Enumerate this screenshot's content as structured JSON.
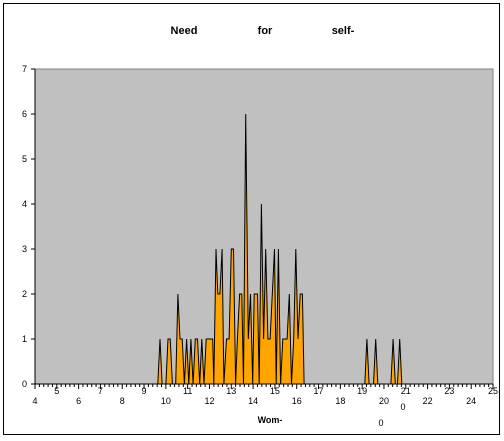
{
  "chart_data": {
    "type": "area",
    "title_words": [
      "Need",
      "for",
      "self-"
    ],
    "xlabel": "Wom-",
    "extra_labels": [
      "0",
      "0"
    ],
    "xlim": [
      4,
      25
    ],
    "ylim": [
      0,
      7
    ],
    "x_major_ticks": [
      4,
      5,
      6,
      7,
      8,
      9,
      10,
      11,
      12,
      13,
      14,
      15,
      16,
      17,
      18,
      19,
      20,
      21,
      22,
      23,
      24,
      25
    ],
    "y_ticks": [
      0,
      1,
      2,
      3,
      4,
      5,
      6,
      7
    ],
    "grid": false,
    "plot_background": "#c0c0c0",
    "fill_color": "#ffa500",
    "line_color": "#000000",
    "series": [
      {
        "points": [
          [
            9.63,
            0
          ],
          [
            9.73,
            1
          ],
          [
            9.83,
            0
          ],
          [
            10.0,
            0
          ],
          [
            10.1,
            1
          ],
          [
            10.2,
            1
          ],
          [
            10.3,
            0
          ],
          [
            10.45,
            0
          ],
          [
            10.55,
            2
          ],
          [
            10.65,
            1
          ],
          [
            10.75,
            1
          ],
          [
            10.85,
            0
          ],
          [
            10.95,
            1
          ],
          [
            11.05,
            0
          ],
          [
            11.15,
            1
          ],
          [
            11.25,
            0
          ],
          [
            11.35,
            1
          ],
          [
            11.45,
            1
          ],
          [
            11.55,
            0
          ],
          [
            11.65,
            1
          ],
          [
            11.75,
            0
          ],
          [
            11.85,
            1
          ],
          [
            12.05,
            1
          ],
          [
            12.15,
            1
          ],
          [
            12.2,
            0
          ],
          [
            12.3,
            3
          ],
          [
            12.38,
            2
          ],
          [
            12.48,
            2
          ],
          [
            12.58,
            3
          ],
          [
            12.66,
            0
          ],
          [
            12.78,
            1
          ],
          [
            12.9,
            1
          ],
          [
            13.0,
            3
          ],
          [
            13.1,
            3
          ],
          [
            13.2,
            0
          ],
          [
            13.28,
            1
          ],
          [
            13.38,
            2
          ],
          [
            13.48,
            2
          ],
          [
            13.56,
            0
          ],
          [
            13.66,
            6
          ],
          [
            13.78,
            1
          ],
          [
            13.88,
            2
          ],
          [
            13.98,
            0
          ],
          [
            14.05,
            2
          ],
          [
            14.2,
            2
          ],
          [
            14.28,
            0
          ],
          [
            14.38,
            4
          ],
          [
            14.48,
            1
          ],
          [
            14.58,
            3
          ],
          [
            14.68,
            1
          ],
          [
            14.78,
            1
          ],
          [
            14.88,
            2
          ],
          [
            14.98,
            3
          ],
          [
            15.06,
            0
          ],
          [
            15.16,
            3
          ],
          [
            15.26,
            0
          ],
          [
            15.36,
            1
          ],
          [
            15.46,
            1
          ],
          [
            15.56,
            1
          ],
          [
            15.66,
            2
          ],
          [
            15.76,
            0
          ],
          [
            15.86,
            1
          ],
          [
            15.96,
            3
          ],
          [
            16.06,
            1
          ],
          [
            16.16,
            2
          ],
          [
            16.26,
            2
          ],
          [
            16.34,
            0
          ],
          [
            19.12,
            0
          ],
          [
            19.22,
            1
          ],
          [
            19.32,
            0
          ],
          [
            19.52,
            0
          ],
          [
            19.62,
            1
          ],
          [
            19.72,
            0
          ],
          [
            20.32,
            0
          ],
          [
            20.42,
            1
          ],
          [
            20.52,
            0
          ],
          [
            20.62,
            0
          ],
          [
            20.72,
            1
          ],
          [
            20.82,
            0
          ]
        ]
      }
    ]
  }
}
